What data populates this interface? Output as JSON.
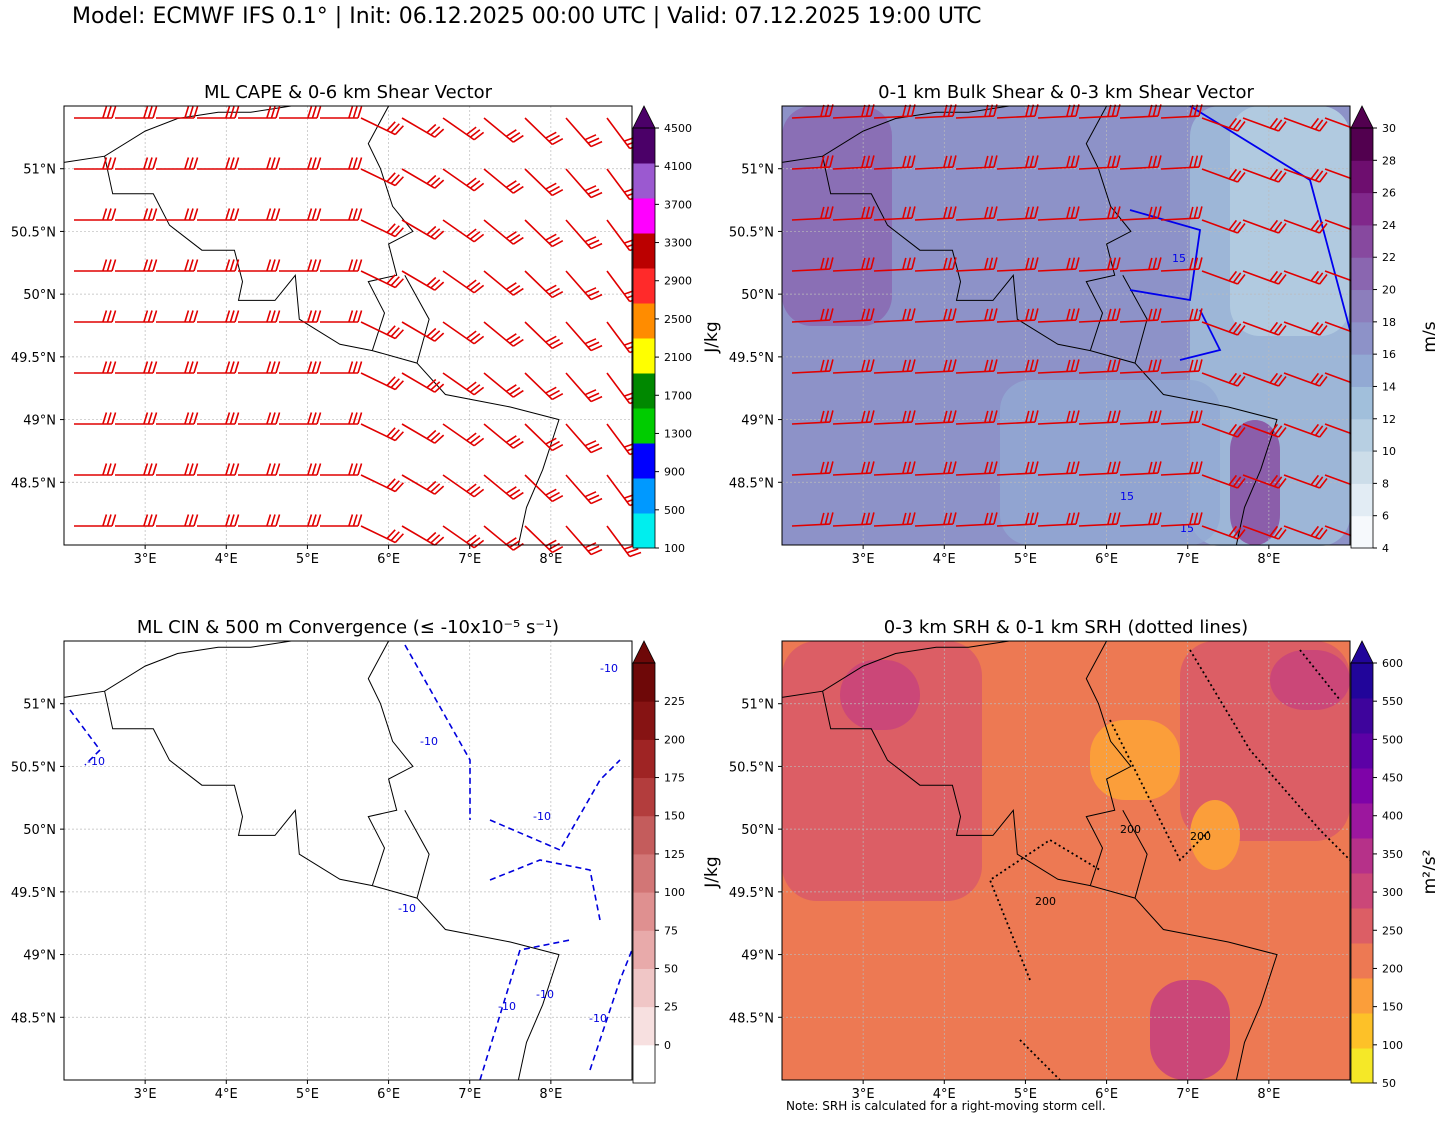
{
  "header": {
    "title": "Model: ECMWF IFS 0.1° | Init: 06.12.2025 00:00 UTC | Valid: 07.12.2025 19:00 UTC"
  },
  "note": "Note: SRH is calculated for a right-moving storm cell.",
  "map_axes": {
    "lon_range": [
      2,
      9
    ],
    "lat_range": [
      48,
      51.5
    ],
    "lon_ticks": [
      3,
      4,
      5,
      6,
      7,
      8
    ],
    "lon_tick_labels": [
      "3°E",
      "4°E",
      "5°E",
      "6°E",
      "7°E",
      "8°E"
    ],
    "lat_ticks": [
      48.5,
      49,
      49.5,
      50,
      50.5,
      51
    ],
    "lat_tick_labels": [
      "48.5°N",
      "49°N",
      "49.5°N",
      "50°N",
      "50.5°N",
      "51°N"
    ],
    "grid": true
  },
  "panels": [
    {
      "id": "cape",
      "title": "ML CAPE & 0-6 km Shear Vector",
      "colorbar_label": "J/kg",
      "colorbar_ticks": [
        "100",
        "500",
        "900",
        "1300",
        "1700",
        "2100",
        "2500",
        "2900",
        "3300",
        "3700",
        "4100",
        "4500"
      ],
      "colorbar_colors": [
        "#00eeee",
        "#0099ff",
        "#0000ff",
        "#00cc00",
        "#008800",
        "#ffff00",
        "#ff8c00",
        "#ff2a2a",
        "#bb0000",
        "#ff00ff",
        "#9b59d0",
        "#4b0068"
      ],
      "extend": "max",
      "barb_color": "#e00000"
    },
    {
      "id": "shear",
      "title": "0-1 km Bulk Shear & 0-3 km Shear Vector",
      "colorbar_label": "m/s",
      "colorbar_ticks": [
        "4",
        "6",
        "8",
        "10",
        "12",
        "14",
        "16",
        "18",
        "20",
        "22",
        "24",
        "26",
        "28",
        "30"
      ],
      "colorbar_colors": [
        "#f6f9fc",
        "#e2ecf4",
        "#ccdde9",
        "#b7cfe2",
        "#a1bfdb",
        "#92a9d3",
        "#8d92c8",
        "#8c7ebc",
        "#8a66b0",
        "#87499f",
        "#81288b",
        "#6e0e6f",
        "#52004f"
      ],
      "extend": "max",
      "contour_label": "15",
      "contour_color": "#0000ee",
      "barb_color": "#e00000"
    },
    {
      "id": "cin",
      "title": "ML CIN & 500 m Convergence (≤ -10x10⁻⁵ s⁻¹)",
      "colorbar_label": "J/kg",
      "colorbar_ticks": [
        "0",
        "25",
        "50",
        "75",
        "100",
        "125",
        "150",
        "175",
        "200",
        "225"
      ],
      "colorbar_colors": [
        "#ffffff",
        "#f7e0e0",
        "#f0c6c6",
        "#e8aaaa",
        "#df9090",
        "#d27676",
        "#c45c5c",
        "#b33d3d",
        "#9f2424",
        "#861313",
        "#6e0808"
      ],
      "extend": "max",
      "contour_label": "-10",
      "contour_color": "#0000dd"
    },
    {
      "id": "srh",
      "title": "0-3 km SRH & 0-1 km SRH (dotted lines)",
      "colorbar_label": "m²/s²",
      "colorbar_ticks": [
        "50",
        "100",
        "150",
        "200",
        "250",
        "300",
        "350",
        "400",
        "450",
        "500",
        "550",
        "600"
      ],
      "colorbar_colors": [
        "#f5e827",
        "#fdc128",
        "#fb9e3a",
        "#ed7953",
        "#dc5e65",
        "#cb4778",
        "#b63189",
        "#9c179e",
        "#7e03a8",
        "#5c01a6",
        "#3e049c",
        "#21059a"
      ],
      "extend": "max",
      "contour_label": "200",
      "contour_color": "#000000"
    }
  ]
}
